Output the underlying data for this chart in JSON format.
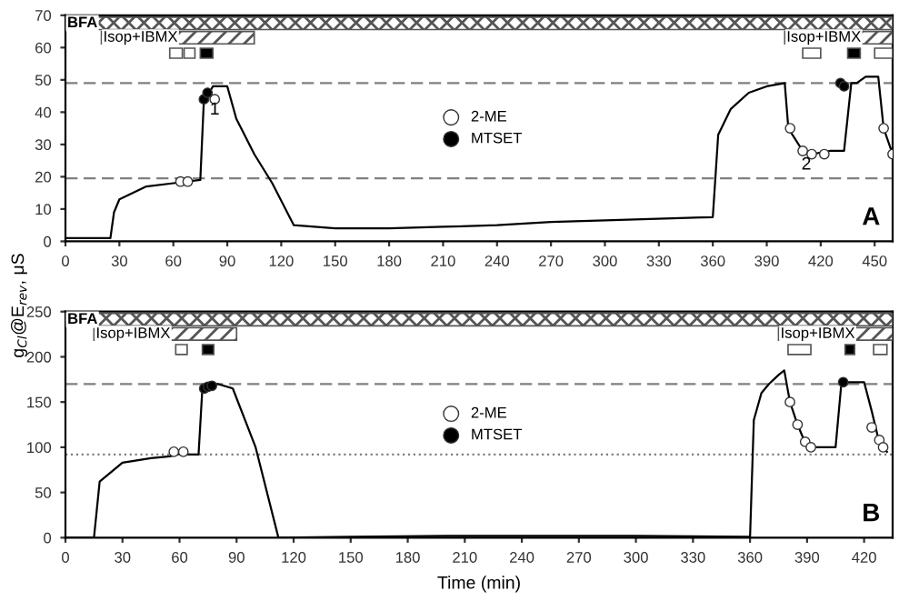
{
  "chart_data": [
    {
      "type": "line",
      "ylabel": "g$_{Cl}$@E$_{rev}$, μS",
      "xlim": [
        0,
        460
      ],
      "xticks": [
        0,
        30,
        60,
        90,
        120,
        150,
        180,
        210,
        240,
        270,
        300,
        330,
        360,
        390,
        420,
        450
      ],
      "ylim": [
        0,
        70
      ],
      "yticks": [
        0,
        10,
        20,
        30,
        40,
        50,
        60,
        70
      ],
      "legend": "center",
      "grid": false,
      "series": [
        {
          "color": "#000000",
          "x": [
            0,
            25,
            27,
            30,
            45,
            60,
            75,
            77,
            80,
            82,
            90,
            95,
            105,
            115,
            127,
            150,
            180,
            210,
            240,
            270,
            300,
            360,
            363,
            370,
            380,
            390,
            400,
            402,
            410,
            415,
            425,
            433,
            437,
            440,
            445,
            452,
            455,
            460
          ],
          "values": [
            1,
            1,
            9,
            13,
            17,
            18,
            19,
            44,
            46,
            48,
            48,
            38,
            27,
            18,
            5,
            4,
            4,
            4.5,
            5,
            6,
            6.5,
            7.5,
            33,
            41,
            46,
            48,
            49,
            35,
            28,
            27,
            28,
            28,
            49,
            49,
            51,
            51,
            35,
            27
          ]
        },
        {
          "type": "scatter",
          "name": "2-ME",
          "color": "#ffffff",
          "x": [
            64,
            68,
            83,
            403,
            410,
            415,
            422,
            455,
            460
          ],
          "values": [
            18.5,
            18.5,
            44,
            35,
            28,
            27,
            27,
            35,
            27
          ]
        },
        {
          "type": "scatter",
          "name": "MTSET",
          "color": "#000000",
          "x": [
            77,
            79,
            431,
            433
          ],
          "values": [
            44,
            46,
            49,
            48
          ]
        }
      ],
      "ref_lines": [
        {
          "axis": "y",
          "value": 49,
          "line_style": "dashed",
          "color": "#808080"
        },
        {
          "axis": "y",
          "value": 19.5,
          "line_style": "dashed",
          "color": "#808080"
        }
      ],
      "bands": [
        {
          "axis": "x",
          "from": 0,
          "to": 460,
          "label": "BFA",
          "color": "#555555"
        },
        {
          "axis": "x",
          "from": 20,
          "to": 105,
          "label": "Isop+IBMX",
          "color": "#555555"
        },
        {
          "axis": "x",
          "from": 400,
          "to": 460,
          "label": "Isop+IBMX",
          "color": "#555555"
        },
        {
          "axis": "x",
          "from": 58,
          "to": 65,
          "color": "#ffffff"
        },
        {
          "axis": "x",
          "from": 66,
          "to": 72,
          "color": "#ffffff"
        },
        {
          "axis": "x",
          "from": 75,
          "to": 82,
          "color": "#000000"
        },
        {
          "axis": "x",
          "from": 410,
          "to": 420,
          "color": "#ffffff"
        },
        {
          "axis": "x",
          "from": 435,
          "to": 442,
          "color": "#000000"
        },
        {
          "axis": "x",
          "from": 450,
          "to": 460,
          "color": "#ffffff"
        }
      ],
      "annotations": [
        {
          "text": "1",
          "x": 83,
          "y": 44
        },
        {
          "text": "2",
          "x": 412,
          "y": 27
        },
        "A"
      ]
    },
    {
      "type": "line",
      "xlabel": "Time (min)",
      "xlim": [
        0,
        435
      ],
      "xticks": [
        0,
        30,
        60,
        90,
        120,
        150,
        180,
        210,
        240,
        270,
        300,
        330,
        360,
        390,
        420
      ],
      "ylim": [
        0,
        250
      ],
      "yticks": [
        0,
        50,
        100,
        150,
        200,
        250
      ],
      "legend": "center",
      "grid": false,
      "series": [
        {
          "color": "#000000",
          "x": [
            0,
            15,
            18,
            30,
            45,
            55,
            60,
            65,
            70,
            72,
            75,
            80,
            88,
            100,
            112,
            150,
            200,
            300,
            359,
            360,
            362,
            366,
            370,
            375,
            378,
            381,
            385,
            388,
            392,
            405,
            408,
            412,
            420,
            424,
            428,
            432
          ],
          "values": [
            0,
            0,
            62,
            83,
            88,
            90,
            93,
            92,
            92,
            165,
            168,
            170,
            165,
            100,
            0,
            1,
            2,
            2,
            1,
            0,
            130,
            160,
            170,
            180,
            185,
            150,
            125,
            110,
            100,
            100,
            170,
            172,
            172,
            140,
            105,
            95
          ]
        },
        {
          "type": "scatter",
          "name": "2-ME",
          "color": "#ffffff",
          "x": [
            57,
            62,
            381,
            385,
            389,
            392,
            424,
            428,
            430
          ],
          "values": [
            95,
            95,
            150,
            125,
            106,
            100,
            122,
            108,
            100
          ]
        },
        {
          "type": "scatter",
          "name": "MTSET",
          "color": "#000000",
          "x": [
            73,
            75,
            77,
            409
          ],
          "values": [
            165,
            167,
            168,
            172
          ]
        }
      ],
      "ref_lines": [
        {
          "axis": "y",
          "value": 170,
          "line_style": "dashed",
          "color": "#808080"
        },
        {
          "axis": "y",
          "value": 92,
          "line_style": "dotted",
          "color": "#808080"
        }
      ],
      "bands": [
        {
          "axis": "x",
          "from": 0,
          "to": 435,
          "label": "BFA",
          "color": "#555555"
        },
        {
          "axis": "x",
          "from": 15,
          "to": 90,
          "label": "Isop+IBMX",
          "color": "#555555"
        },
        {
          "axis": "x",
          "from": 375,
          "to": 435,
          "label": "Isop+IBMX",
          "color": "#555555"
        },
        {
          "axis": "x",
          "from": 58,
          "to": 64,
          "color": "#ffffff"
        },
        {
          "axis": "x",
          "from": 72,
          "to": 78,
          "color": "#000000"
        },
        {
          "axis": "x",
          "from": 380,
          "to": 392,
          "color": "#ffffff"
        },
        {
          "axis": "x",
          "from": 410,
          "to": 415,
          "color": "#000000"
        },
        {
          "axis": "x",
          "from": 425,
          "to": 432,
          "color": "#ffffff"
        }
      ],
      "annotations": [
        "B"
      ]
    }
  ]
}
